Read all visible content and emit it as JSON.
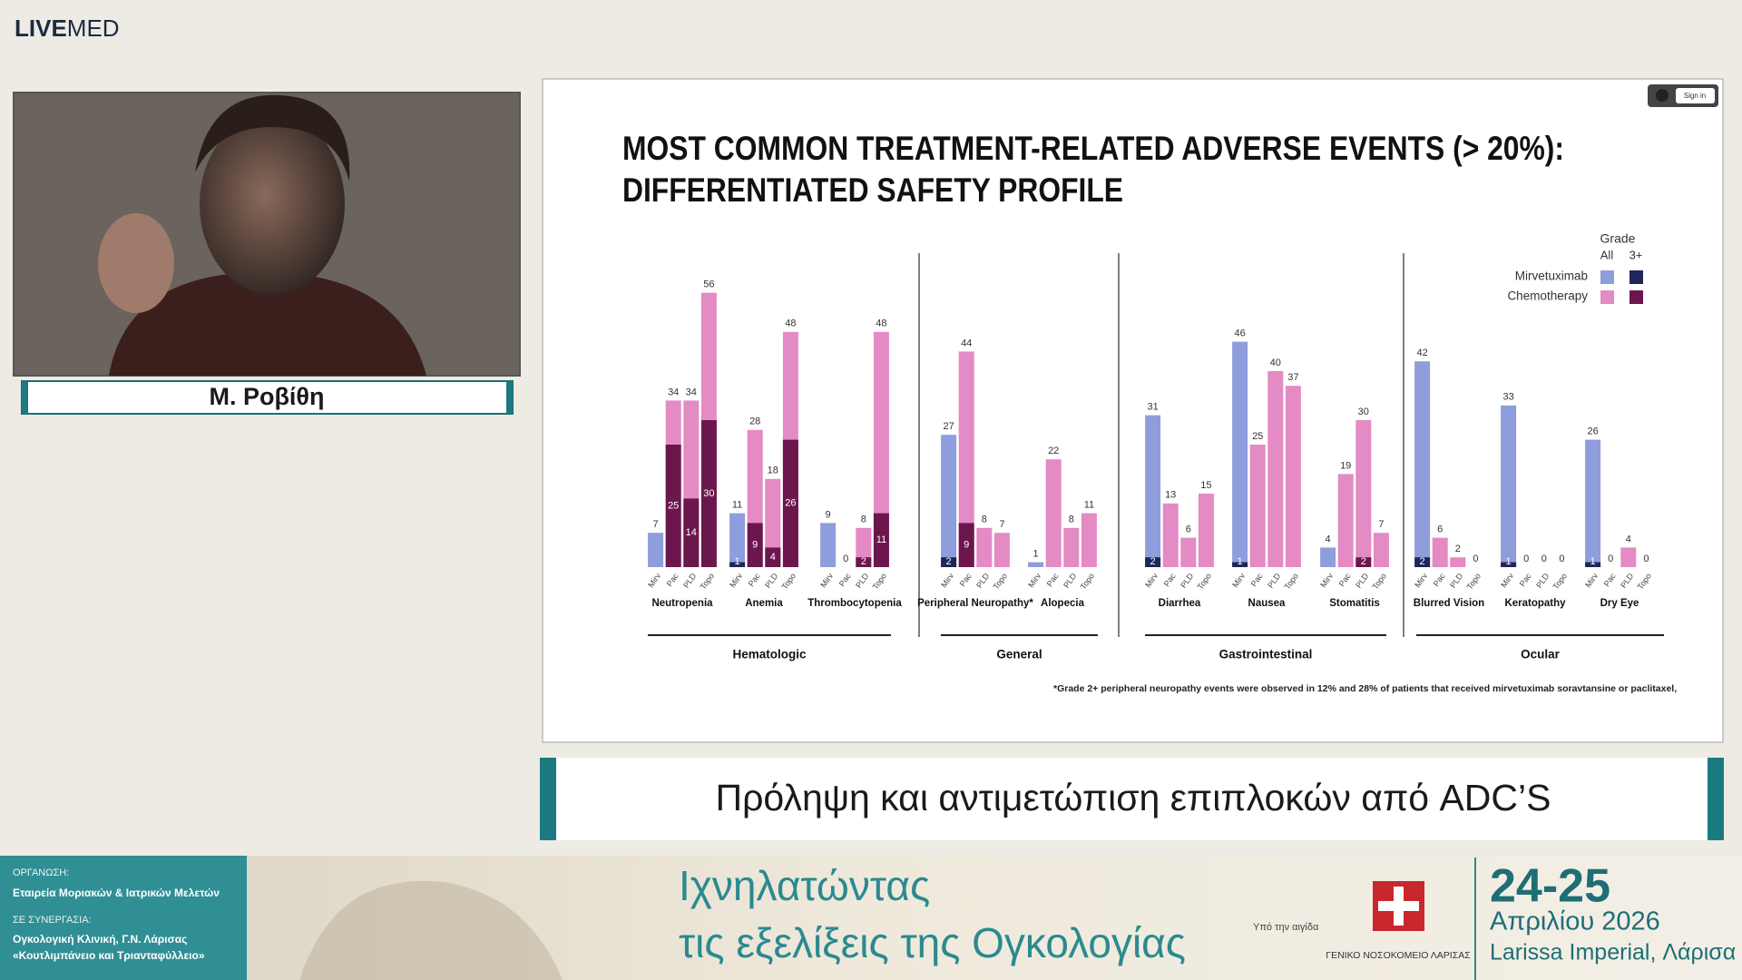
{
  "header": {
    "logo_bold": "LIVE",
    "logo_light": "MED"
  },
  "speaker": {
    "name": "Μ. Ροβίθη"
  },
  "slide": {
    "sign_in": "Sign in",
    "title_lines": [
      "MOST COMMON TREATMENT-RELATED ADVERSE EVENTS (> 20%):",
      "DIFFERENTIATED SAFETY PROFILE"
    ],
    "footnote": "*Grade 2+ peripheral neuropathy events were observed in 12% and 28% of patients that received mirvetuximab soravtansine or paclitaxel,"
  },
  "chart_data": {
    "type": "bar",
    "legend_title": "Grade",
    "legend_columns": [
      "All",
      "3+"
    ],
    "legend": [
      {
        "name": "Mirvetuximab",
        "colors": [
          "#8e9ddb",
          "#1f2658"
        ]
      },
      {
        "name": "Chemotherapy",
        "colors": [
          "#e48ac4",
          "#6b174d"
        ]
      }
    ],
    "domains": [
      {
        "name": "Hematologic",
        "categories": [
          "Neutropenia",
          "Anemia",
          "Thrombocytopenia"
        ]
      },
      {
        "name": "General",
        "categories": [
          "Peripheral Neuropathy*",
          "Alopecia"
        ]
      },
      {
        "name": "Gastrointestinal",
        "categories": [
          "Diarrhea",
          "Nausea",
          "Stomatitis"
        ]
      },
      {
        "name": "Ocular",
        "categories": [
          "Blurred Vision",
          "Keratopathy",
          "Dry Eye"
        ]
      }
    ],
    "series": [
      {
        "name": "Mirv",
        "color": "#8e9ddb",
        "grade3_color": "#1f2658",
        "values": [
          7,
          11,
          9,
          27,
          1,
          31,
          46,
          4,
          42,
          33,
          26
        ],
        "grade3_values": [
          null,
          1,
          null,
          2,
          null,
          2,
          1,
          null,
          2,
          1,
          1
        ]
      },
      {
        "name": "Pac",
        "color": "#e48ac4",
        "grade3_color": "#6b174d",
        "values": [
          34,
          28,
          0,
          44,
          22,
          13,
          25,
          19,
          6,
          0,
          0
        ],
        "grade3_values": [
          25,
          9,
          null,
          9,
          null,
          null,
          null,
          null,
          null,
          null,
          null
        ]
      },
      {
        "name": "PLD",
        "color": "#e48ac4",
        "grade3_color": "#6b174d",
        "values": [
          34,
          18,
          8,
          8,
          8,
          6,
          40,
          30,
          2,
          0,
          4
        ],
        "grade3_values": [
          14,
          4,
          2,
          null,
          null,
          null,
          null,
          2,
          null,
          null,
          null
        ]
      },
      {
        "name": "Topo",
        "color": "#e48ac4",
        "grade3_color": "#6b174d",
        "values": [
          56,
          48,
          48,
          7,
          11,
          15,
          37,
          7,
          0,
          0,
          0
        ],
        "grade3_values": [
          30,
          26,
          11,
          null,
          null,
          null,
          null,
          null,
          null,
          null,
          null
        ]
      }
    ]
  },
  "banner": {
    "text": "Πρόληψη και αντιμετώπιση επιπλοκών από ADC’S"
  },
  "footer": {
    "organizer_label": "ΟΡΓΑΝΩΣΗ:",
    "organizer": "Εταιρεία Μοριακών & Ιατρικών Μελετών",
    "partner_label": "ΣΕ ΣΥΝΕΡΓΑΣΙΑ:",
    "partner_lines": [
      "Ογκολογική Κλινική, Γ.Ν. Λάρισας",
      "«Κουτλιμπάνειο και Τριανταφύλλειο»"
    ],
    "event_title_lines": [
      "Ιχνηλατώντας",
      "τις εξελίξεις της Ογκολογίας"
    ],
    "auspices": "Υπό την αιγίδα",
    "hospital": "ΓΕΝΙΚΟ ΝΟΣΟΚΟΜΕΙΟ ΛΑΡΙΣΑΣ",
    "dates": "24-25",
    "month_year": "Απριλίου 2026",
    "venue": "Larissa Imperial, Λάρισα"
  }
}
